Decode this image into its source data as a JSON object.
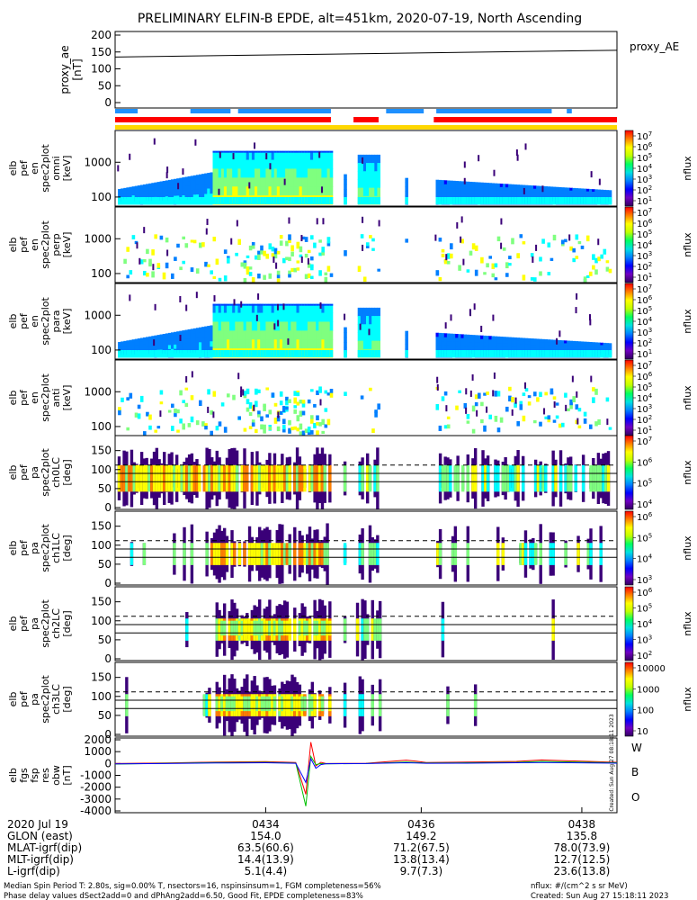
{
  "title": "PRELIMINARY ELFIN-B EPDE, alt=451km, 2020-07-19, North Ascending",
  "colors": {
    "red": "#ff0000",
    "green": "#00c000",
    "blue": "#0000ff",
    "bar_blue": "#1e90ff",
    "bar_red": "#ff0000",
    "bar_yellow": "#ffd700"
  },
  "proxy_panel": {
    "ylabel": [
      "proxy_ae",
      "[nT]"
    ],
    "legend": "proxy_AE",
    "yticks": [
      "200",
      "150",
      "100",
      "50",
      "0"
    ],
    "ylim": [
      0,
      200
    ],
    "series": {
      "name": "proxy_AE",
      "x": [
        0,
        1
      ],
      "y": [
        135,
        155
      ]
    }
  },
  "spec_panels": [
    {
      "ylabel": [
        "elb",
        "pef",
        "en",
        "spec2plot",
        "omni",
        "[keV]"
      ],
      "yticks": [
        "1000",
        "100"
      ],
      "cbar_ticks": [
        "10^7",
        "10^6",
        "10^5",
        "10^4",
        "10^3",
        "10^2",
        "10^1"
      ],
      "cbar_label": "nflux"
    },
    {
      "ylabel": [
        "elb",
        "pef",
        "en",
        "spec2plot",
        "perp",
        "[keV]"
      ],
      "yticks": [
        "1000",
        "100"
      ],
      "cbar_ticks": [
        "10^7",
        "10^6",
        "10^5",
        "10^4",
        "10^3",
        "10^2",
        "10^1"
      ],
      "cbar_label": "nflux"
    },
    {
      "ylabel": [
        "elb",
        "pef",
        "en",
        "spec2plot",
        "para",
        "[keV]"
      ],
      "yticks": [
        "1000",
        "100"
      ],
      "cbar_ticks": [
        "10^7",
        "10^6",
        "10^5",
        "10^4",
        "10^3",
        "10^2",
        "10^1"
      ],
      "cbar_label": "nflux"
    },
    {
      "ylabel": [
        "elb",
        "pef",
        "en",
        "spec2plot",
        "anti",
        "[keV]"
      ],
      "yticks": [
        "1000",
        "100"
      ],
      "cbar_ticks": [
        "10^7",
        "10^6",
        "10^5",
        "10^4",
        "10^3",
        "10^2",
        "10^1"
      ],
      "cbar_label": "nflux"
    }
  ],
  "pa_panels": [
    {
      "ylabel": [
        "elb",
        "pef",
        "pa",
        "spec2plot",
        "ch0LC",
        "[deg]"
      ],
      "yticks": [
        "150",
        "100",
        "50",
        "0"
      ],
      "cbar_ticks": [
        "10^7",
        "10^6",
        "10^5",
        "10^4"
      ],
      "cbar_label": "nflux"
    },
    {
      "ylabel": [
        "elb",
        "pef",
        "pa",
        "spec2plot",
        "ch1LC",
        "[deg]"
      ],
      "yticks": [
        "150",
        "100",
        "50",
        "0"
      ],
      "cbar_ticks": [
        "10^6",
        "10^5",
        "10^4",
        "10^3"
      ],
      "cbar_label": "nflux"
    },
    {
      "ylabel": [
        "elb",
        "pef",
        "pa",
        "spec2plot",
        "ch2LC",
        "[deg]"
      ],
      "yticks": [
        "150",
        "100",
        "50",
        "0"
      ],
      "cbar_ticks": [
        "10^6",
        "10^5",
        "10^4",
        "10^3",
        "10^2"
      ],
      "cbar_label": "nflux"
    },
    {
      "ylabel": [
        "elb",
        "pef",
        "pa",
        "spec2plot",
        "ch3LC",
        "[deg]"
      ],
      "yticks": [
        "150",
        "100",
        "50",
        "0"
      ],
      "cbar_ticks": [
        "10000",
        "1000",
        "100",
        "10"
      ],
      "cbar_label": "nflux"
    }
  ],
  "fgm_panel": {
    "ylabel": [
      "elb",
      "fgs",
      "fsp",
      "res",
      "obw",
      "[nT]"
    ],
    "yticks": [
      "2000",
      "1000",
      "0",
      "-1000",
      "-2000",
      "-3000",
      "-4000"
    ],
    "ylim": [
      -4000,
      2000
    ],
    "legend": [
      "W",
      "B",
      "O"
    ],
    "side_stamp": "Created: Sun Aug 27 08:18:11 2023",
    "chart_data": {
      "type": "line",
      "series": [
        {
          "name": "W",
          "color": "#ff0000",
          "x": [
            0,
            0.1,
            0.2,
            0.3,
            0.36,
            0.38,
            0.39,
            0.4,
            0.41,
            0.42,
            0.5,
            0.58,
            0.6,
            0.62,
            0.7,
            0.8,
            0.85,
            1
          ],
          "y": [
            0,
            40,
            120,
            160,
            80,
            -2600,
            1800,
            -200,
            100,
            0,
            20,
            280,
            200,
            80,
            120,
            180,
            300,
            100
          ]
        },
        {
          "name": "B",
          "color": "#00c000",
          "x": [
            0,
            0.1,
            0.2,
            0.3,
            0.36,
            0.38,
            0.39,
            0.4,
            0.41,
            0.42,
            0.5,
            0.58,
            0.6,
            0.62,
            0.7,
            0.8,
            0.85,
            1
          ],
          "y": [
            -50,
            20,
            80,
            100,
            40,
            -3600,
            600,
            -100,
            0,
            -30,
            0,
            120,
            80,
            40,
            60,
            100,
            180,
            60
          ]
        },
        {
          "name": "O",
          "color": "#0000ff",
          "x": [
            0,
            0.1,
            0.2,
            0.3,
            0.36,
            0.38,
            0.39,
            0.4,
            0.41,
            0.42,
            0.5,
            0.58,
            0.6,
            0.62,
            0.7,
            0.8,
            0.85,
            1
          ],
          "y": [
            -30,
            0,
            40,
            60,
            20,
            -1600,
            400,
            -400,
            -100,
            -20,
            0,
            60,
            40,
            20,
            30,
            60,
            80,
            30
          ]
        }
      ]
    }
  },
  "xaxis": {
    "rows": [
      {
        "label": "2020 Jul 19",
        "values": [
          "0434",
          "0436",
          "0438"
        ]
      },
      {
        "label": "GLON (east)",
        "values": [
          "154.0",
          "149.2",
          "135.8"
        ]
      },
      {
        "label": "MLAT-igrf(dip)",
        "values": [
          "63.5(60.6)",
          "71.2(67.5)",
          "78.0(73.9)"
        ]
      },
      {
        "label": "MLT-igrf(dip)",
        "values": [
          "14.4(13.9)",
          "13.8(13.4)",
          "12.7(12.5)"
        ]
      },
      {
        "label": "L-igrf(dip)",
        "values": [
          "5.1(4.4)",
          "9.7(7.3)",
          "23.6(13.8)"
        ]
      }
    ],
    "tick_pos": [
      0.3,
      0.61,
      0.93
    ]
  },
  "footer": {
    "line1_left": "Median Spin Period T: 2.80s, sig=0.00% T, nsectors=16, nspinsinsum=1, FGM completeness=56%",
    "line2_left": "Phase delay values dSect2add=0 and dPhAng2add=6.50, Good Fit, EPDE completeness=83%",
    "line1_right": "nflux: #/(cm^2 s sr MeV)",
    "line2_right": "Created: Sun Aug 27 15:18:11 2023"
  }
}
